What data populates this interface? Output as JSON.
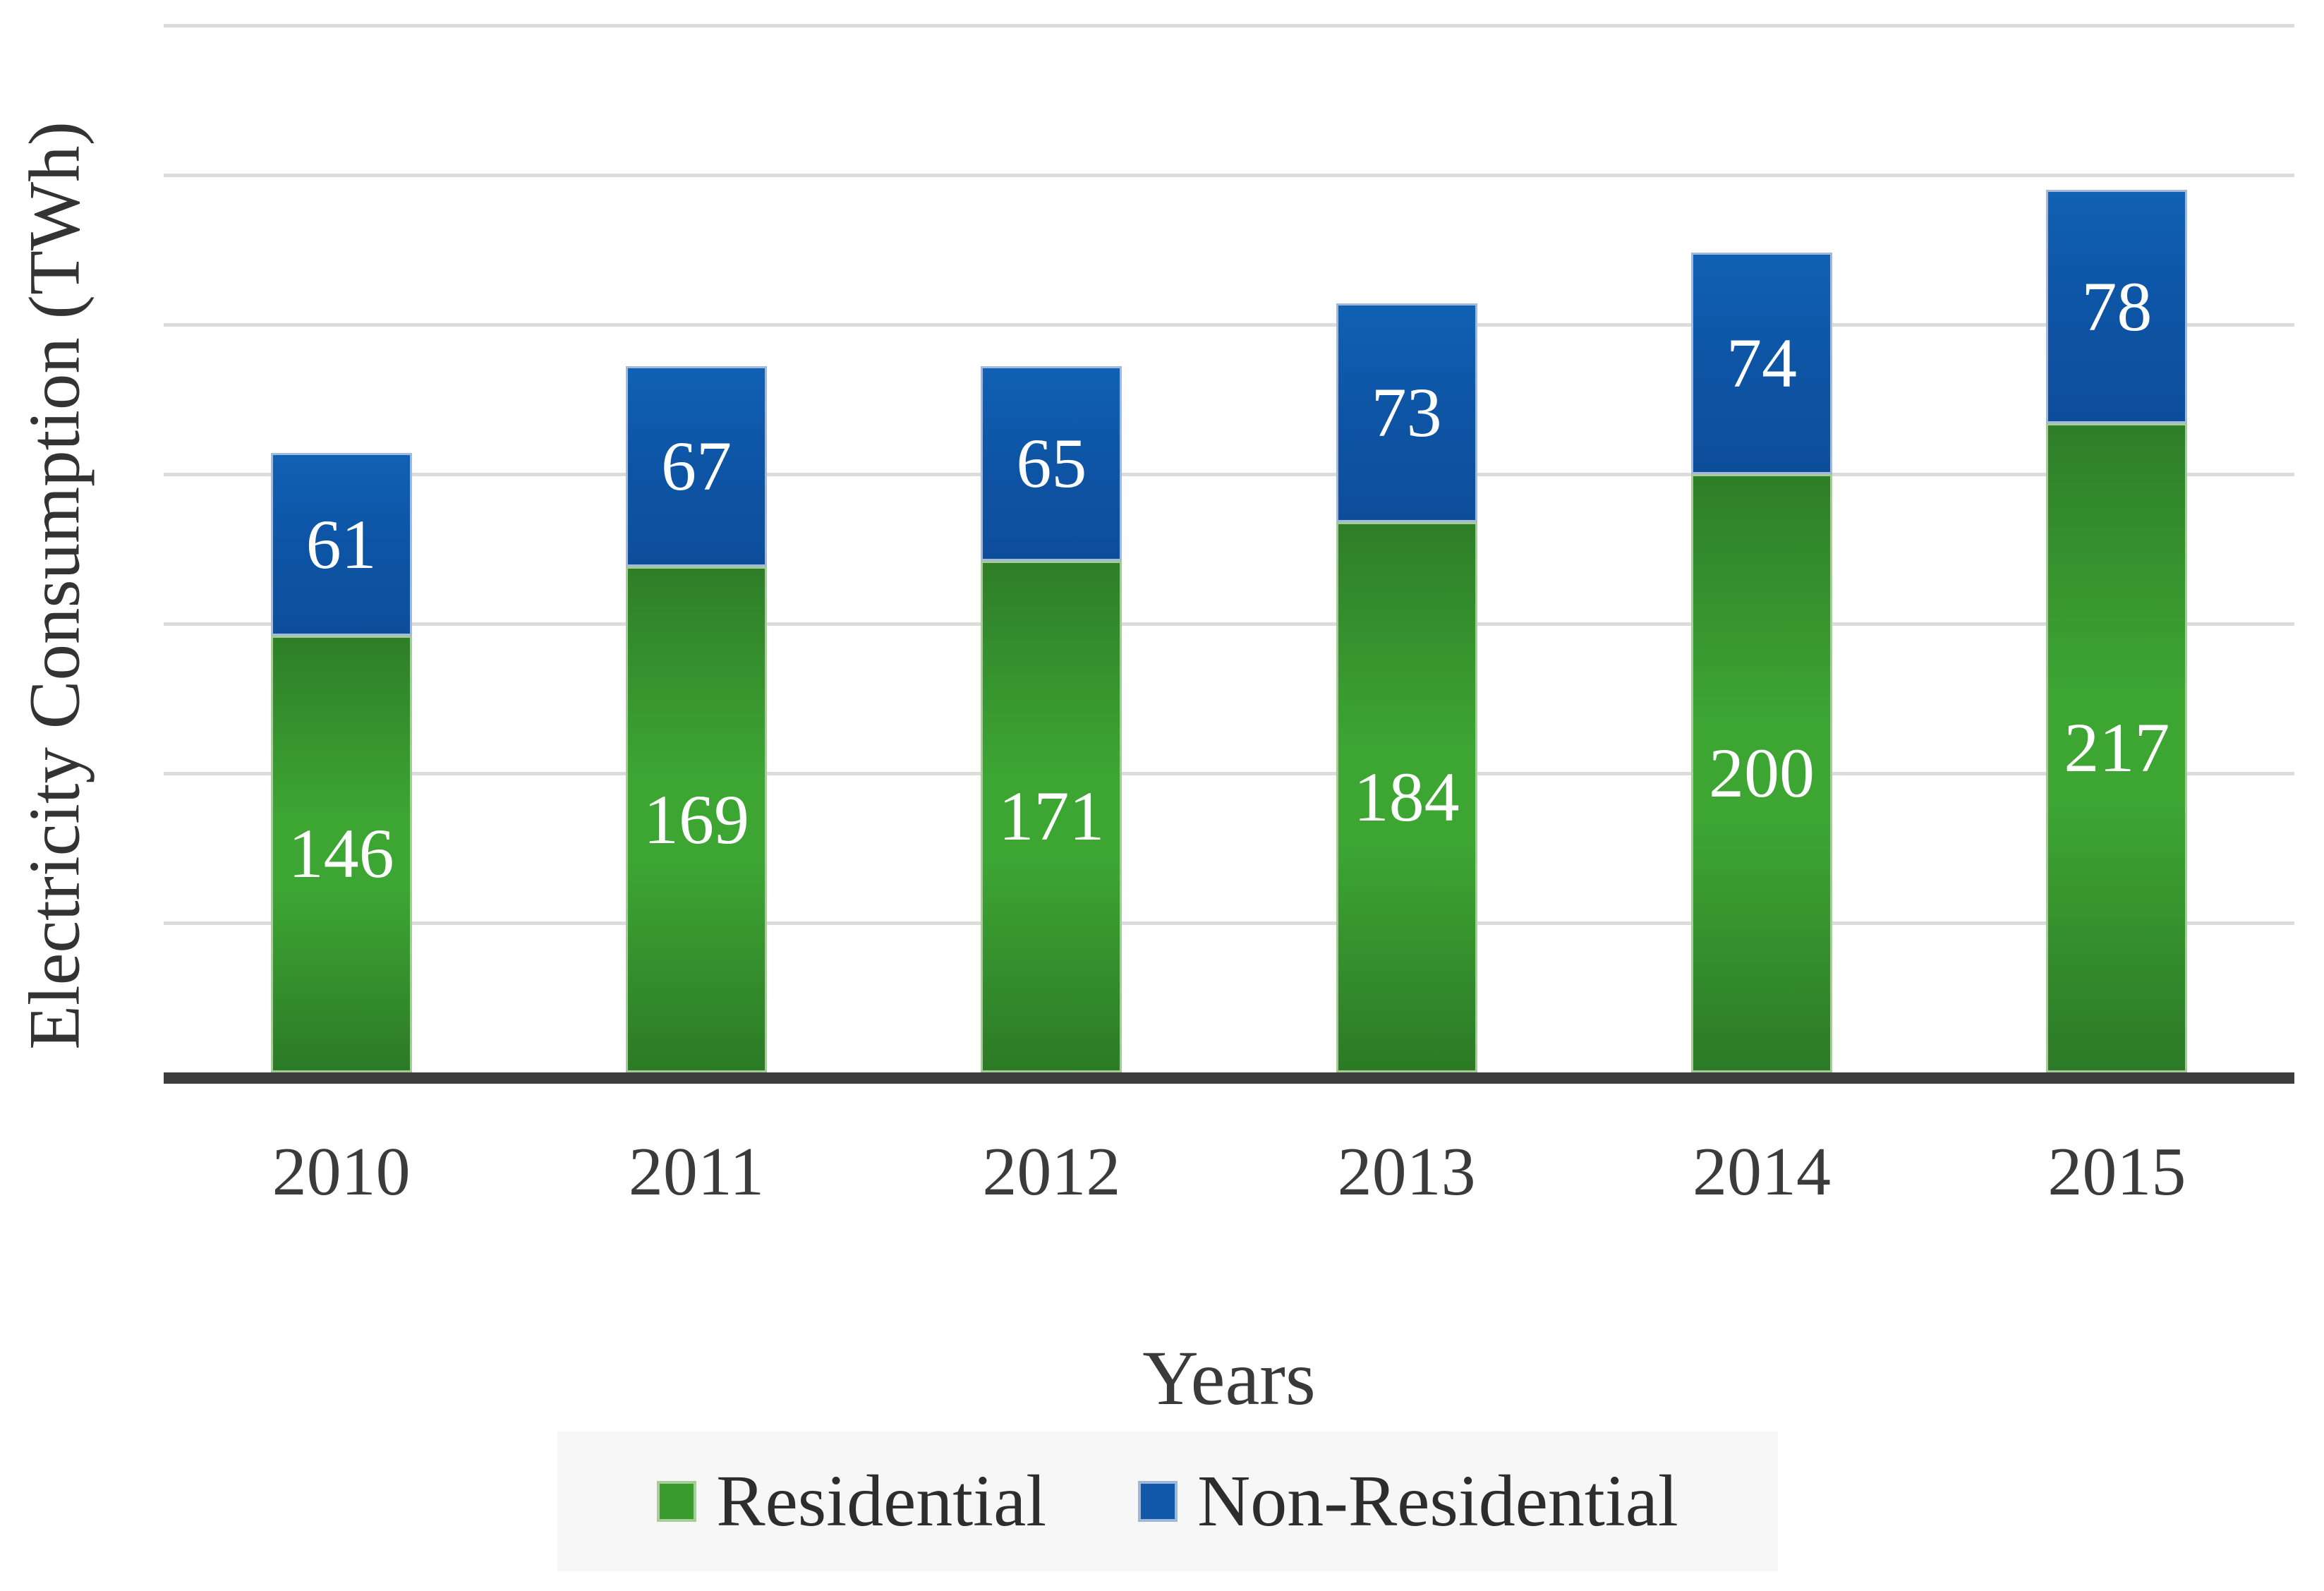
{
  "chart_data": {
    "type": "bar",
    "stacked": true,
    "categories": [
      "2010",
      "2011",
      "2012",
      "2013",
      "2014",
      "2015"
    ],
    "series": [
      {
        "name": "Residential",
        "color": "#3da633",
        "values": [
          146,
          169,
          171,
          184,
          200,
          217
        ]
      },
      {
        "name": "Non-Residential",
        "color": "#0f5aab",
        "values": [
          61,
          67,
          65,
          73,
          74,
          78
        ]
      }
    ],
    "totals": [
      207,
      236,
      236,
      257,
      274,
      295
    ],
    "title": "",
    "xlabel": "Years",
    "ylabel": "Electricity Consumption (TWh)",
    "ylim": [
      0,
      350
    ],
    "gridline_step": 50,
    "grid": "horizontal",
    "y_tick_labels_visible": false,
    "value_labels": "inside segment, centered, white",
    "legend_position": "bottom"
  },
  "legend": {
    "items": [
      {
        "label": "Residential",
        "swatch_color": "#3a9c2f"
      },
      {
        "label": "Non-Residential",
        "swatch_color": "#1158a8"
      }
    ]
  },
  "colors": {
    "residential_fill_mid": "#3da633",
    "residential_fill_edge": "#2d7d27",
    "residential_border": "#a5cb99",
    "non_residential_fill_top": "#1061b4",
    "non_residential_fill_bottom": "#0d4e9b",
    "non_residential_border": "#a2b9d9",
    "gridline": "#dcdcdc",
    "axis_line": "#3e3e3e",
    "tick_text": "#3b3b3b",
    "legend_background": "#f7f7f7",
    "bar_value_text": "#ffffff"
  }
}
